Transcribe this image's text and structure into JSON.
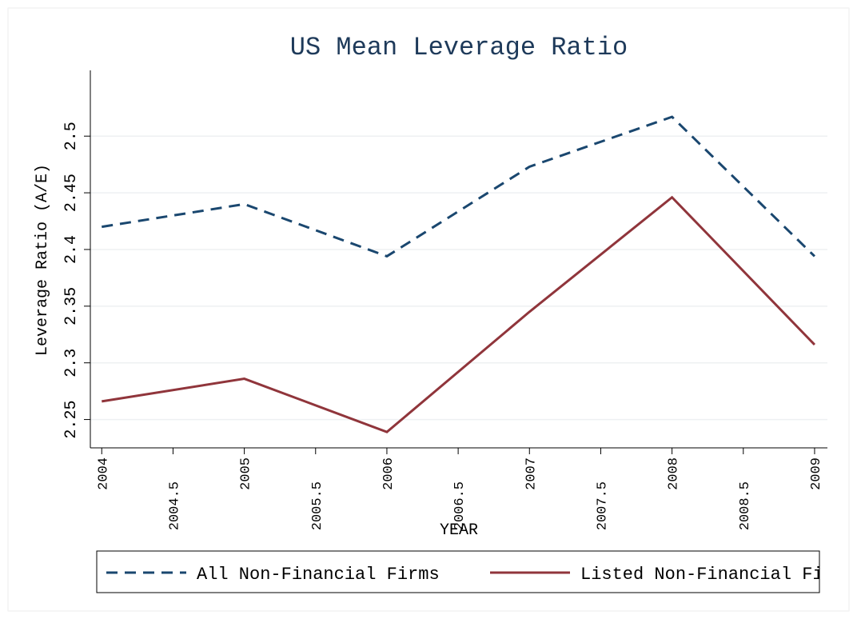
{
  "chart_data": {
    "type": "line",
    "title": "US Mean Leverage Ratio",
    "x_label": "YEAR",
    "y_label": "Leverage Ratio (A/E)",
    "x": [
      2004,
      2005,
      2006,
      2007,
      2008,
      2009
    ],
    "series": [
      {
        "name": "All Non-Financial Firms",
        "color": "#1a476f",
        "dash": true,
        "values": [
          2.42,
          2.44,
          2.394,
          2.473,
          2.517,
          2.394
        ]
      },
      {
        "name": "Listed Non-Financial Fir",
        "color": "#90353b",
        "dash": false,
        "values": [
          2.266,
          2.286,
          2.239,
          2.345,
          2.446,
          2.316
        ]
      }
    ],
    "xlim": [
      2003.92,
      2009.09
    ],
    "xticks": [
      2004,
      2004.5,
      2005,
      2005.5,
      2006,
      2006.5,
      2007,
      2007.5,
      2008,
      2008.5,
      2009
    ],
    "ylim": [
      2.225,
      2.558
    ],
    "yticks": [
      2.25,
      2.3,
      2.35,
      2.4,
      2.45,
      2.5
    ],
    "grid": true,
    "legend": "bottom"
  }
}
